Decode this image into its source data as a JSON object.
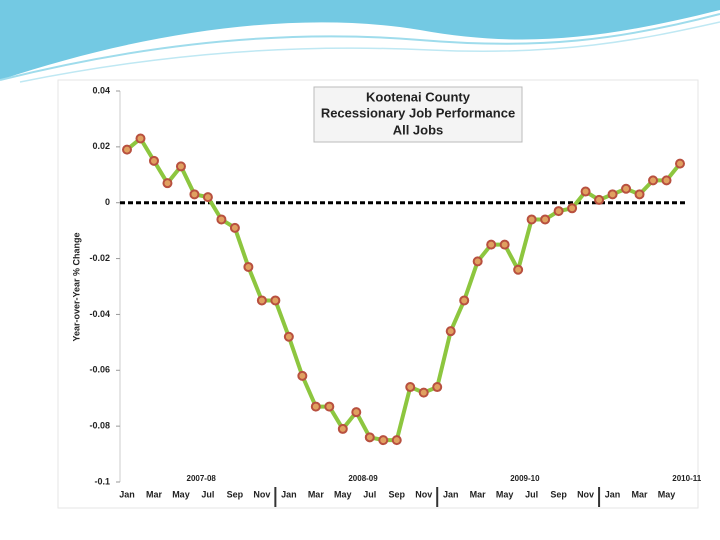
{
  "chart_data": {
    "type": "line",
    "title": [
      "Kootenai County",
      "Recessionary Job Performance",
      "All Jobs"
    ],
    "y_label": "Year-over-Year % Change",
    "fiscal_years": [
      "2007-08",
      "2008-09",
      "2009-10",
      "2010-11"
    ],
    "categories": [
      "Jan",
      null,
      "Mar",
      null,
      "May",
      null,
      "Jul",
      null,
      "Sep",
      null,
      "Nov",
      null,
      "Jan",
      null,
      "Mar",
      null,
      "May",
      null,
      "Jul",
      null,
      "Sep",
      null,
      "Nov",
      null,
      "Jan",
      null,
      "Mar",
      null,
      "May",
      null,
      "Jul",
      null,
      "Sep",
      null,
      "Nov",
      null,
      "Jan",
      null,
      "Mar",
      null,
      "May",
      null
    ],
    "series": [
      {
        "name": "All Jobs",
        "color": "#8dc63f",
        "marker_color": "#b8503f",
        "values": [
          0.019,
          0.023,
          0.015,
          0.007,
          0.013,
          0.003,
          0.002,
          -0.006,
          -0.009,
          -0.023,
          -0.035,
          -0.035,
          -0.048,
          -0.062,
          -0.073,
          -0.073,
          -0.081,
          -0.075,
          -0.084,
          -0.085,
          -0.085,
          -0.066,
          -0.068,
          -0.066,
          -0.046,
          -0.035,
          -0.021,
          -0.015,
          -0.015,
          -0.024,
          -0.006,
          -0.006,
          -0.003,
          -0.002,
          0.004,
          0.001,
          0.003,
          0.005,
          0.003,
          0.008,
          0.008,
          0.014
        ]
      }
    ],
    "ylim": [
      -0.1,
      0.04
    ],
    "yticks": [
      0.04,
      0.02,
      0,
      -0.02,
      -0.04,
      -0.06,
      -0.08,
      -0.1
    ],
    "zero_line": true
  }
}
